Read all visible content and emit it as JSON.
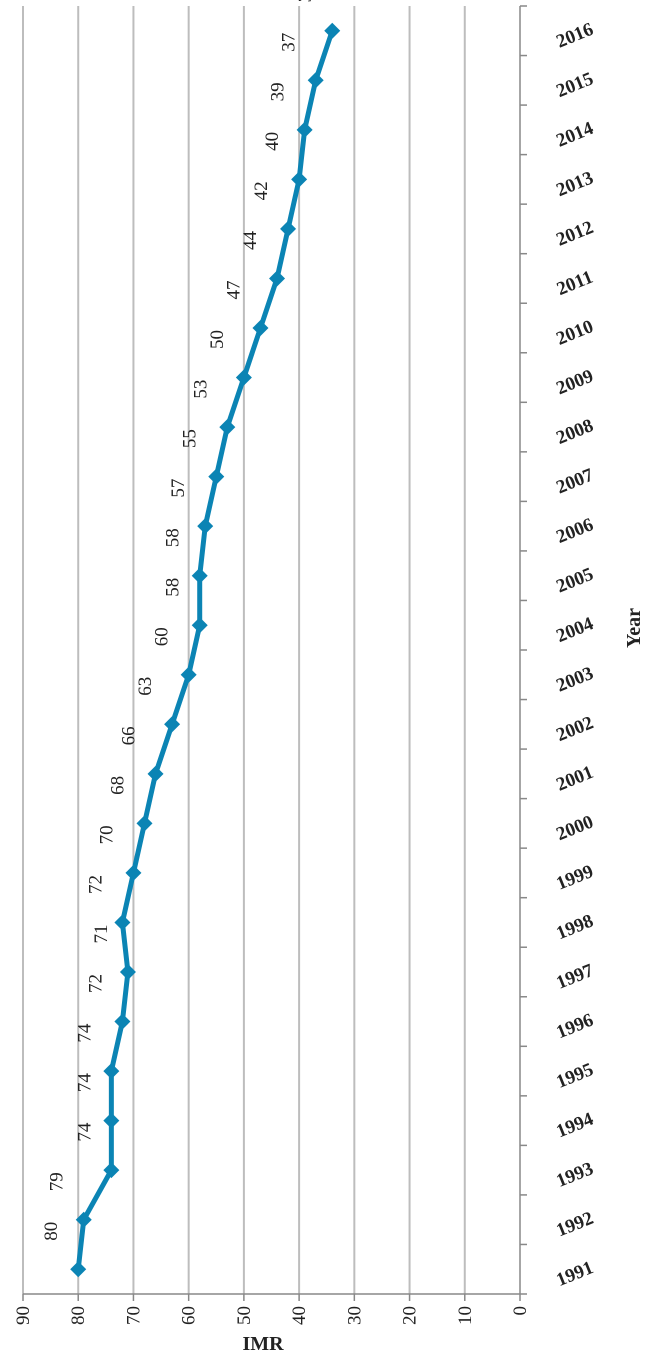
{
  "chart_data": {
    "type": "line",
    "orientation": "rotated-90-clockwise",
    "title": "",
    "xlabel": "Year",
    "ylabel": "IMR",
    "ylim": [
      0,
      90
    ],
    "ytick_step": 10,
    "grid": true,
    "legend": "none",
    "x": [
      "1991",
      "1992",
      "1993",
      "1994",
      "1995",
      "1996",
      "1997",
      "1998",
      "1999",
      "2000",
      "2001",
      "2002",
      "2003",
      "2004",
      "2005",
      "2006",
      "2007",
      "2008",
      "2009",
      "2010",
      "2011",
      "2012",
      "2013",
      "2014",
      "2015",
      "2016"
    ],
    "values": [
      80,
      79,
      74,
      74,
      74,
      72,
      71,
      72,
      70,
      68,
      66,
      63,
      60,
      58,
      58,
      57,
      55,
      53,
      50,
      47,
      44,
      42,
      40,
      39,
      37,
      34
    ],
    "line_color": "#0b84b4",
    "grid_color": "#bdbdbd",
    "marker": "diamond"
  }
}
